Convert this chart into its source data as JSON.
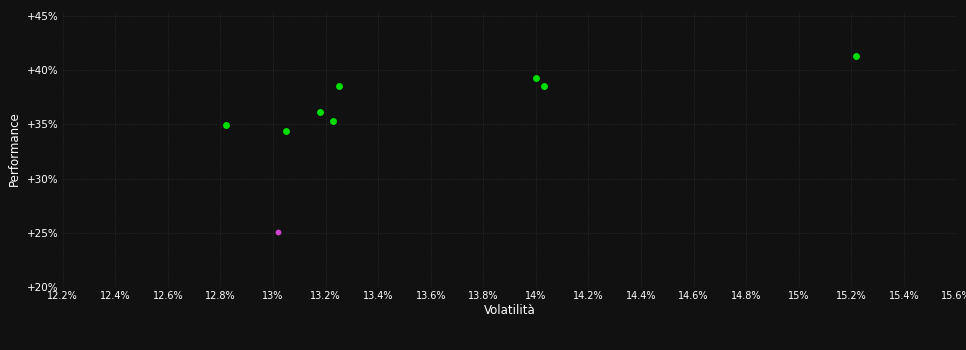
{
  "background_color": "#111111",
  "plot_bg_color": "#111111",
  "grid_color": "#333333",
  "text_color": "#ffffff",
  "xlabel": "Volatilità",
  "ylabel": "Performance",
  "xlim": [
    0.122,
    0.156
  ],
  "ylim": [
    0.2,
    0.455
  ],
  "xtick_values": [
    0.122,
    0.124,
    0.126,
    0.128,
    0.13,
    0.132,
    0.134,
    0.136,
    0.138,
    0.14,
    0.142,
    0.144,
    0.146,
    0.148,
    0.15,
    0.152,
    0.154,
    0.156
  ],
  "ytick_values": [
    0.2,
    0.25,
    0.3,
    0.35,
    0.4,
    0.45
  ],
  "green_points": [
    [
      0.1282,
      0.349
    ],
    [
      0.1305,
      0.344
    ],
    [
      0.1318,
      0.361
    ],
    [
      0.1323,
      0.353
    ],
    [
      0.1325,
      0.385
    ],
    [
      0.14,
      0.393
    ],
    [
      0.1403,
      0.385
    ],
    [
      0.1522,
      0.413
    ]
  ],
  "magenta_points": [
    [
      0.1302,
      0.251
    ]
  ],
  "green_color": "#00dd00",
  "magenta_color": "#cc44cc",
  "marker_size": 5,
  "figsize": [
    9.66,
    3.5
  ],
  "dpi": 100
}
